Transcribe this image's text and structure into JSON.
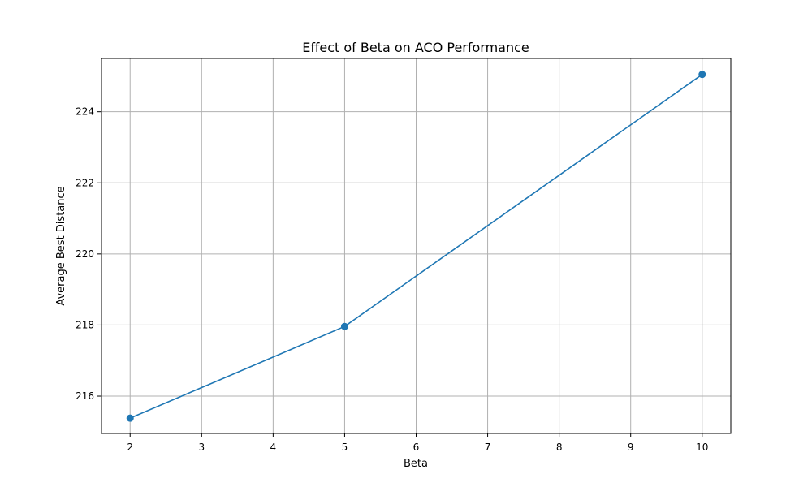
{
  "chart_data": {
    "type": "line",
    "title": "Effect of Beta on ACO Performance",
    "xlabel": "Beta",
    "ylabel": "Average Best Distance",
    "xlim": [
      1.6,
      10.4
    ],
    "ylim": [
      214.95,
      225.5
    ],
    "xticks": [
      2,
      3,
      4,
      5,
      6,
      7,
      8,
      9,
      10
    ],
    "yticks": [
      216,
      218,
      220,
      222,
      224
    ],
    "grid": true,
    "series": [
      {
        "x": [
          2,
          5,
          10
        ],
        "y": [
          215.38,
          217.96,
          225.05
        ],
        "color": "#1f77b4",
        "marker": "circle"
      }
    ]
  }
}
